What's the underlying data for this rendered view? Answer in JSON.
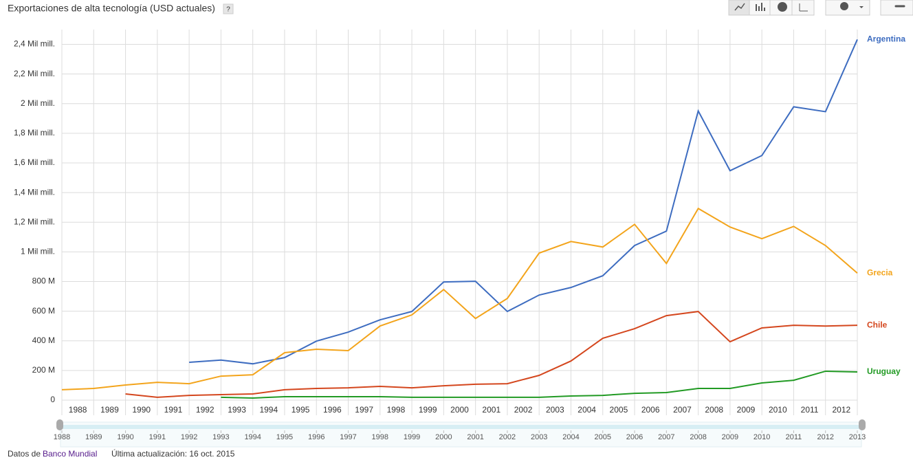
{
  "header": {
    "title": "Exportaciones de alta tecnología (USD actuales)",
    "help": "?"
  },
  "chart_data": {
    "type": "line",
    "x": [
      1988,
      1989,
      1990,
      1991,
      1992,
      1993,
      1994,
      1995,
      1996,
      1997,
      1998,
      1999,
      2000,
      2001,
      2002,
      2003,
      2004,
      2005,
      2006,
      2007,
      2008,
      2009,
      2010,
      2011,
      2012,
      2013
    ],
    "xlim": [
      1988,
      2013
    ],
    "xticks": [
      1988,
      1989,
      1990,
      1991,
      1992,
      1993,
      1994,
      1995,
      1996,
      1997,
      1998,
      1999,
      2000,
      2001,
      2002,
      2003,
      2004,
      2005,
      2006,
      2007,
      2008,
      2009,
      2010,
      2011,
      2012
    ],
    "ylim": [
      0,
      2500
    ],
    "yticks": [
      0,
      {
        "value": 200,
        "label": "200 M"
      },
      {
        "value": 400,
        "label": "400 M"
      },
      {
        "value": 600,
        "label": "600 M"
      },
      {
        "value": 800,
        "label": "800 M"
      },
      {
        "value": 1000,
        "label": "1 Mil mill."
      },
      {
        "value": 1200,
        "label": "1,2 Mil mill."
      },
      {
        "value": 1400,
        "label": "1,4 Mil mill."
      },
      {
        "value": 1600,
        "label": "1,6 Mil mill."
      },
      {
        "value": 1800,
        "label": "1,8 Mil mill."
      },
      {
        "value": 2000,
        "label": "2 Mil mill."
      },
      {
        "value": 2200,
        "label": "2,2 Mil mill."
      },
      {
        "value": 2400,
        "label": "2,4 Mil mill."
      }
    ],
    "grid": true,
    "series": [
      {
        "name": "Argentina",
        "color": "#3d6cc0",
        "values": [
          null,
          null,
          null,
          null,
          255,
          270,
          245,
          287,
          398,
          459,
          542,
          598,
          797,
          802,
          598,
          709,
          760,
          839,
          1043,
          1140,
          1951,
          1548,
          1650,
          1979,
          1946,
          2433
        ]
      },
      {
        "name": "Grecia",
        "color": "#f3a41b",
        "values": [
          70,
          79,
          102,
          120,
          111,
          162,
          171,
          320,
          343,
          334,
          500,
          575,
          746,
          551,
          686,
          992,
          1070,
          1033,
          1186,
          922,
          1293,
          1168,
          1089,
          1172,
          1043,
          857
        ]
      },
      {
        "name": "Chile",
        "color": "#d4461d",
        "values": [
          null,
          null,
          42,
          19,
          32,
          37,
          42,
          70,
          79,
          83,
          93,
          83,
          97,
          107,
          111,
          167,
          264,
          417,
          482,
          570,
          598,
          394,
          487,
          505,
          500,
          505
        ]
      },
      {
        "name": "Uruguay",
        "color": "#219a23",
        "values": [
          null,
          null,
          null,
          null,
          null,
          19,
          14,
          23,
          23,
          23,
          23,
          19,
          19,
          19,
          19,
          19,
          28,
          32,
          46,
          51,
          79,
          79,
          116,
          134,
          195,
          190
        ]
      }
    ]
  },
  "footer": {
    "source_prefix": "Datos de",
    "source": "Banco Mundial",
    "updated": "Última actualización: 16 oct. 2015"
  }
}
